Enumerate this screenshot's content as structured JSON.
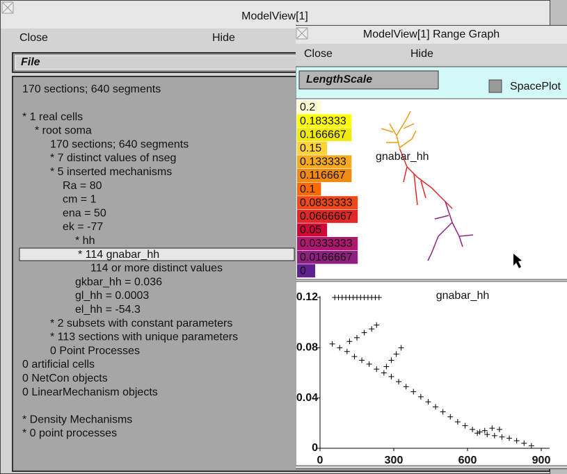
{
  "left_window": {
    "title": "ModelView[1]",
    "menu": [
      "Close",
      "Hide"
    ],
    "file_button": "File",
    "lines": [
      "170 sections; 640 segments",
      "* 1 real cells",
      "* root soma",
      "170 sections; 640 segments",
      "* 7 distinct values of nseg",
      "* 5 inserted mechanisms",
      "Ra = 80",
      "cm = 1",
      "ena = 50",
      "ek = -77",
      "* hh",
      "* 114 gnabar_hh",
      "114 or more distinct values",
      "gkbar_hh = 0.036",
      "gl_hh = 0.0003",
      "el_hh = -54.3",
      "* 2 subsets with constant parameters",
      "* 113 sections with unique parameters",
      "0 Point Processes",
      "0 artificial cells",
      "0 NetCon objects",
      "0 LinearMechanism objects",
      "* Density Mechanisms",
      "* 0 point processes"
    ]
  },
  "right_window": {
    "title": "ModelView[1] Range Graph",
    "menu": [
      "Close",
      "Hide"
    ],
    "scale_button": "LengthScale",
    "checkbox_label": "SpacePlot",
    "color_scale": {
      "labels": [
        "0.2",
        "0.183333",
        "0.166667",
        "0.15",
        "0.133333",
        "0.116667",
        "0.1",
        "0.0833333",
        "0.0666667",
        "0.05",
        "0.0333333",
        "0.0166667",
        "0"
      ],
      "colors": [
        "#fdfbd0",
        "#ffff00",
        "#f0ea10",
        "#ffd23a",
        "#f5aa20",
        "#f08a10",
        "#ff6a00",
        "#f04818",
        "#e02828",
        "#d00838",
        "#b01870",
        "#902080",
        "#602090"
      ]
    },
    "shape_label": "gnabar_hh",
    "graph": {
      "type": "scatter",
      "title": "gnabar_hh",
      "color": "#000000",
      "x": [
        50,
        80,
        110,
        140,
        170,
        200,
        230,
        260,
        290,
        320,
        350,
        380,
        410,
        440,
        470,
        500,
        530,
        560,
        590,
        620,
        650,
        680,
        710,
        740,
        770,
        800,
        830,
        860,
        120,
        150,
        180,
        210,
        230,
        270,
        290,
        310,
        330,
        640,
        670,
        700,
        730,
        60,
        75,
        90,
        105,
        120,
        135,
        150,
        165,
        180,
        195,
        210,
        225,
        240
      ],
      "y": [
        0.083,
        0.08,
        0.077,
        0.073,
        0.07,
        0.067,
        0.063,
        0.06,
        0.057,
        0.053,
        0.049,
        0.045,
        0.041,
        0.037,
        0.033,
        0.029,
        0.025,
        0.021,
        0.018,
        0.015,
        0.013,
        0.011,
        0.01,
        0.009,
        0.008,
        0.006,
        0.004,
        0.002,
        0.085,
        0.088,
        0.092,
        0.095,
        0.098,
        0.065,
        0.07,
        0.075,
        0.08,
        0.012,
        0.014,
        0.016,
        0.015,
        0.12,
        0.12,
        0.12,
        0.12,
        0.12,
        0.12,
        0.12,
        0.12,
        0.12,
        0.12,
        0.12,
        0.12,
        0.12
      ],
      "xlim": [
        0,
        900
      ],
      "ylim": [
        0,
        0.12
      ],
      "xticks": [
        0,
        300,
        600,
        900
      ],
      "yticks": [
        0,
        0.04,
        0.08,
        0.12
      ]
    }
  }
}
